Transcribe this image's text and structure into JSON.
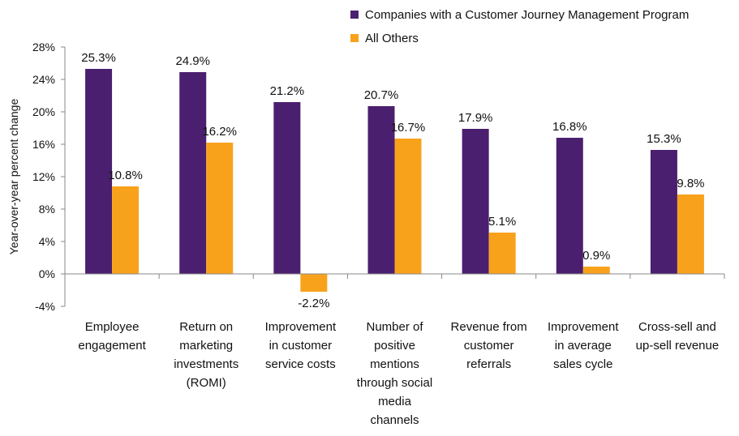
{
  "chart_data": {
    "type": "bar",
    "title": "",
    "xlabel": "",
    "ylabel": "Year-over-year percent change",
    "ylim": [
      -4,
      28
    ],
    "yticks": [
      -4,
      0,
      4,
      8,
      12,
      16,
      20,
      24,
      28
    ],
    "ytick_labels": [
      "-4%",
      "0%",
      "4%",
      "8%",
      "12%",
      "16%",
      "20%",
      "24%",
      "28%"
    ],
    "grid": false,
    "legend_position": "top-right",
    "categories": [
      [
        "Employee",
        "engagement"
      ],
      [
        "Return on",
        "marketing",
        "investments",
        "(ROMI)"
      ],
      [
        "Improvement",
        "in customer",
        "service costs"
      ],
      [
        "Number of",
        "positive",
        "mentions",
        "through social",
        "media",
        "channels"
      ],
      [
        "Revenue from",
        "customer",
        "referrals"
      ],
      [
        "Improvement",
        "in average",
        "sales cycle"
      ],
      [
        "Cross-sell and",
        "up-sell revenue"
      ]
    ],
    "series": [
      {
        "name": "Companies with a Customer Journey Management Program",
        "color": "#4b1f6f",
        "values": [
          25.3,
          24.9,
          21.2,
          20.7,
          17.9,
          16.8,
          15.3
        ],
        "labels": [
          "25.3%",
          "24.9%",
          "21.2%",
          "20.7%",
          "17.9%",
          "16.8%",
          "15.3%"
        ]
      },
      {
        "name": "All Others",
        "color": "#f8a21c",
        "values": [
          10.8,
          16.2,
          -2.2,
          16.7,
          5.1,
          0.9,
          9.8
        ],
        "labels": [
          "10.8%",
          "16.2%",
          "-2.2%",
          "16.7%",
          "5.1%",
          "0.9%",
          "9.8%"
        ]
      }
    ]
  }
}
